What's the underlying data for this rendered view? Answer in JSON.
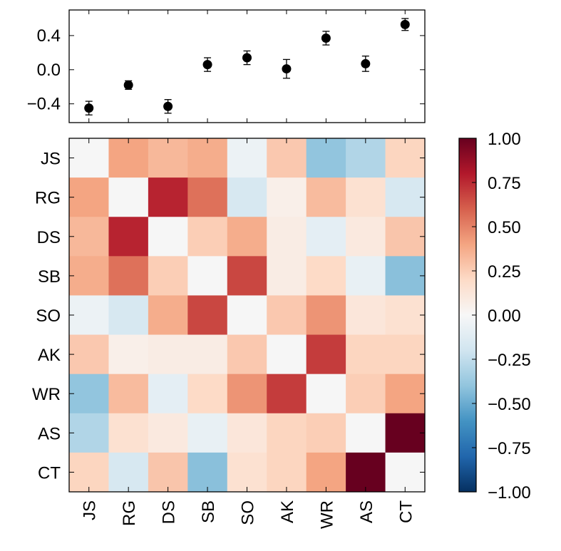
{
  "chart_data": [
    {
      "type": "scatter",
      "error_bars": true,
      "categories": [
        "JS",
        "RG",
        "DS",
        "SB",
        "SO",
        "AK",
        "WR",
        "AS",
        "CT"
      ],
      "values": [
        -0.45,
        -0.18,
        -0.43,
        0.06,
        0.14,
        0.01,
        0.37,
        0.07,
        0.53
      ],
      "errors": [
        0.08,
        0.05,
        0.08,
        0.08,
        0.08,
        0.11,
        0.08,
        0.09,
        0.07
      ],
      "ylim": [
        -0.62,
        0.7
      ],
      "yticks": [
        -0.4,
        0.0,
        0.4
      ],
      "ytick_labels": [
        "−0.4",
        "0.0",
        "0.4"
      ],
      "marker_color": "#000000",
      "grid": false,
      "legend": "none"
    },
    {
      "type": "heatmap",
      "rows": [
        "JS",
        "RG",
        "DS",
        "SB",
        "SO",
        "AK",
        "WR",
        "AS",
        "CT"
      ],
      "cols": [
        "JS",
        "RG",
        "DS",
        "SB",
        "SO",
        "AK",
        "WR",
        "AS",
        "CT"
      ],
      "values": [
        [
          0.0,
          0.4,
          0.33,
          0.37,
          -0.06,
          0.27,
          -0.4,
          -0.3,
          0.22
        ],
        [
          0.4,
          0.0,
          0.77,
          0.55,
          -0.17,
          0.06,
          0.32,
          0.16,
          -0.17
        ],
        [
          0.33,
          0.77,
          0.0,
          0.25,
          0.37,
          0.08,
          -0.1,
          0.1,
          0.28
        ],
        [
          0.37,
          0.55,
          0.25,
          0.0,
          0.67,
          0.08,
          0.2,
          -0.08,
          -0.42
        ],
        [
          -0.06,
          -0.17,
          0.37,
          0.67,
          0.0,
          0.27,
          0.45,
          0.12,
          0.16
        ],
        [
          0.27,
          0.06,
          0.08,
          0.08,
          0.27,
          0.0,
          0.7,
          0.22,
          0.22
        ],
        [
          -0.4,
          0.32,
          -0.1,
          0.2,
          0.45,
          0.7,
          0.0,
          0.25,
          0.4
        ],
        [
          -0.3,
          0.16,
          0.1,
          -0.08,
          0.12,
          0.22,
          0.25,
          0.0,
          1.0
        ],
        [
          0.22,
          -0.17,
          0.28,
          -0.42,
          0.16,
          0.22,
          0.4,
          1.0,
          0.0
        ]
      ],
      "diagonal_color": "#f6f6f6",
      "colormap": "RdBu_r",
      "vmin": -1.0,
      "vmax": 1.0,
      "colorbar_ticks": [
        1.0,
        0.75,
        0.5,
        0.25,
        0.0,
        -0.25,
        -0.5,
        -0.75,
        -1.0
      ],
      "colorbar_tick_labels": [
        "1.00",
        "0.75",
        "0.50",
        "0.25",
        "0.00",
        "−0.25",
        "−0.50",
        "−0.75",
        "−1.00"
      ]
    }
  ]
}
